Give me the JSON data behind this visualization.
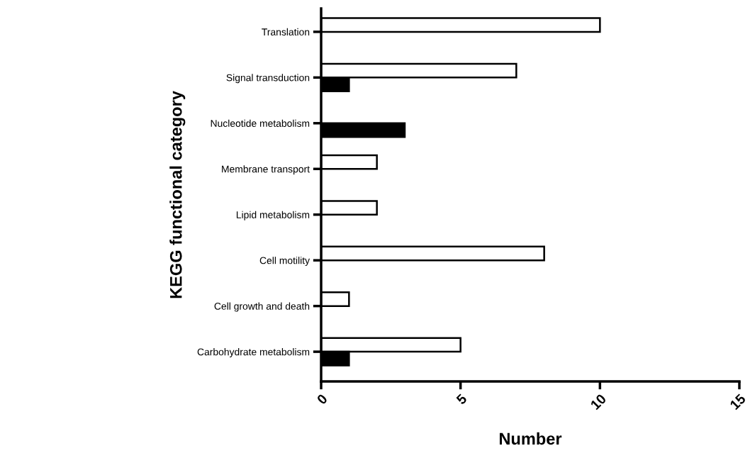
{
  "chart_data": {
    "type": "bar",
    "orientation": "horizontal",
    "xlabel": "Number",
    "ylabel": "KEGG functional category",
    "categories": [
      "Translation",
      "Signal transduction",
      "Nucleotide metabolism",
      "Membrane transport",
      "Lipid metabolism",
      "Cell motility",
      "Cell growth and death",
      "Carbohydrate metabolism"
    ],
    "series": [
      {
        "color": "#ffffff",
        "values": [
          10,
          7,
          null,
          2,
          2,
          8,
          1,
          5
        ]
      },
      {
        "color": "#000000",
        "values": [
          null,
          1,
          3,
          null,
          null,
          null,
          null,
          1
        ]
      }
    ],
    "xlim": [
      0,
      15
    ],
    "xticks": [
      0,
      5,
      10,
      15
    ],
    "grid": false,
    "legend": false
  }
}
